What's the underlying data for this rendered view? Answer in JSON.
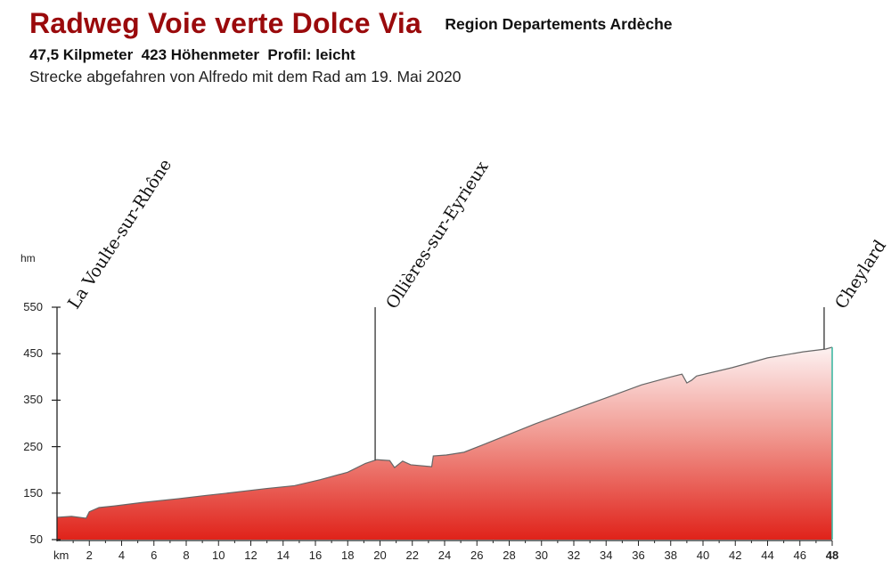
{
  "header": {
    "title": "Radweg Voie verte Dolce Via",
    "region": "Region Departements Ardèche",
    "stats": "47,5 Kilpmeter  423 Höhenmeter  Profil: leicht",
    "subtitle": "Strecke abgefahren von Alfredo mit dem Rad am 19. Mai 2020"
  },
  "colors": {
    "title": "#9a0a0c",
    "fill_top": "#fdf2f2",
    "fill_bottom": "#e0231a",
    "outline": "#666666",
    "end_edge": "#3fb9a3"
  },
  "chart_data": {
    "type": "area",
    "title": "Radweg Voie verte Dolce Via",
    "xlabel": "km",
    "ylabel": "hm",
    "xlim": [
      0,
      48
    ],
    "ylim": [
      50,
      550
    ],
    "x_ticks": [
      2,
      4,
      6,
      8,
      10,
      12,
      14,
      16,
      18,
      20,
      22,
      24,
      26,
      28,
      30,
      32,
      34,
      36,
      38,
      40,
      42,
      44,
      46,
      48
    ],
    "y_ticks": [
      550,
      450,
      350,
      250,
      150,
      50
    ],
    "grid": false,
    "legend": null,
    "x": [
      0,
      0.9,
      1.8,
      2.0,
      2.6,
      3.7,
      5.3,
      7.5,
      9.2,
      10.8,
      13.0,
      14.7,
      16.3,
      18.0,
      19.1,
      19.8,
      20.6,
      20.9,
      21.4,
      21.9,
      23.2,
      23.3,
      24.1,
      25.2,
      26.3,
      29.6,
      32.4,
      34.0,
      36.2,
      37.9,
      38.7,
      39.0,
      39.3,
      39.6,
      41.8,
      44.0,
      46.2,
      47.6,
      48.0
    ],
    "values": [
      98,
      100,
      96,
      110,
      119,
      123,
      130,
      138,
      145,
      151,
      160,
      166,
      179,
      195,
      214,
      222,
      220,
      205,
      219,
      211,
      207,
      230,
      232,
      238,
      253,
      299,
      335,
      355,
      383,
      399,
      406,
      387,
      393,
      402,
      420,
      441,
      454,
      460,
      464
    ],
    "annotations": [
      {
        "label": "La Voulte-sur-Rhône",
        "km": 0
      },
      {
        "label": "Ollières-sur-Eyrieux",
        "km": 19.7
      },
      {
        "label": "Cheylard",
        "km": 47.5
      }
    ]
  },
  "axis": {
    "unit_y": "hm",
    "unit_x": "km"
  }
}
